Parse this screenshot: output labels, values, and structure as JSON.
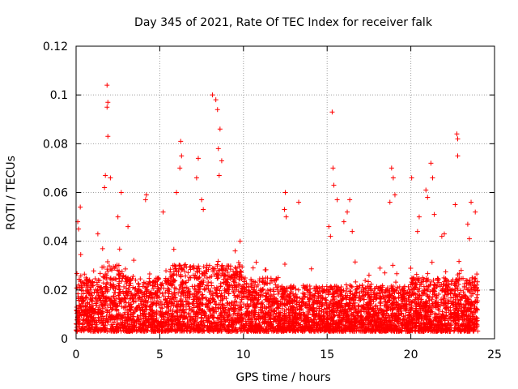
{
  "chart_data": {
    "type": "scatter",
    "title": "Day 345 of 2021, Rate Of TEC Index for receiver falk",
    "xlabel": "GPS time / hours",
    "ylabel": "ROTI / TECUs",
    "xlim": [
      0,
      25
    ],
    "ylim": [
      0,
      0.12
    ],
    "x_ticks": [
      "0",
      "5",
      "10",
      "15",
      "20",
      "25"
    ],
    "y_ticks": [
      "0",
      "0.02",
      "0.04",
      "0.06",
      "0.08",
      "0.1",
      "0.12"
    ],
    "grid": true,
    "marker": "plus",
    "series_color": "#ff0000",
    "x_range_data": [
      0,
      24
    ],
    "features": [
      {
        "x": 1.85,
        "y": 0.104
      },
      {
        "x": 1.9,
        "y": 0.097
      },
      {
        "x": 1.85,
        "y": 0.095
      },
      {
        "x": 1.9,
        "y": 0.083
      },
      {
        "x": 8.15,
        "y": 0.1
      },
      {
        "x": 8.35,
        "y": 0.098
      },
      {
        "x": 8.45,
        "y": 0.094
      },
      {
        "x": 15.3,
        "y": 0.093
      },
      {
        "x": 22.75,
        "y": 0.084
      },
      {
        "x": 22.8,
        "y": 0.082
      },
      {
        "x": 22.8,
        "y": 0.075
      },
      {
        "x": 6.25,
        "y": 0.081
      },
      {
        "x": 6.3,
        "y": 0.075
      },
      {
        "x": 6.2,
        "y": 0.07
      },
      {
        "x": 7.3,
        "y": 0.074
      },
      {
        "x": 7.2,
        "y": 0.066
      },
      {
        "x": 8.6,
        "y": 0.086
      },
      {
        "x": 8.5,
        "y": 0.078
      },
      {
        "x": 8.7,
        "y": 0.073
      },
      {
        "x": 8.55,
        "y": 0.067
      },
      {
        "x": 21.2,
        "y": 0.072
      },
      {
        "x": 21.3,
        "y": 0.066
      },
      {
        "x": 20.05,
        "y": 0.066
      },
      {
        "x": 18.85,
        "y": 0.07
      },
      {
        "x": 18.95,
        "y": 0.066
      },
      {
        "x": 15.35,
        "y": 0.07
      },
      {
        "x": 15.4,
        "y": 0.063
      },
      {
        "x": 1.75,
        "y": 0.067
      },
      {
        "x": 1.7,
        "y": 0.062
      },
      {
        "x": 2.05,
        "y": 0.066
      },
      {
        "x": 2.7,
        "y": 0.06
      },
      {
        "x": 4.2,
        "y": 0.059
      },
      {
        "x": 4.15,
        "y": 0.057
      },
      {
        "x": 6.0,
        "y": 0.06
      },
      {
        "x": 7.5,
        "y": 0.057
      },
      {
        "x": 12.5,
        "y": 0.06
      },
      {
        "x": 12.45,
        "y": 0.053
      },
      {
        "x": 13.3,
        "y": 0.056
      },
      {
        "x": 15.6,
        "y": 0.057
      },
      {
        "x": 16.35,
        "y": 0.057
      },
      {
        "x": 18.75,
        "y": 0.056
      },
      {
        "x": 19.05,
        "y": 0.059
      },
      {
        "x": 20.9,
        "y": 0.061
      },
      {
        "x": 21.0,
        "y": 0.058
      },
      {
        "x": 22.65,
        "y": 0.055
      },
      {
        "x": 23.6,
        "y": 0.056
      },
      {
        "x": 23.85,
        "y": 0.052
      },
      {
        "x": 0.1,
        "y": 0.048
      },
      {
        "x": 0.25,
        "y": 0.054
      },
      {
        "x": 0.15,
        "y": 0.045
      },
      {
        "x": 5.2,
        "y": 0.052
      },
      {
        "x": 7.6,
        "y": 0.053
      },
      {
        "x": 9.8,
        "y": 0.04
      },
      {
        "x": 12.55,
        "y": 0.05
      },
      {
        "x": 15.1,
        "y": 0.046
      },
      {
        "x": 15.2,
        "y": 0.042
      },
      {
        "x": 16.0,
        "y": 0.048
      },
      {
        "x": 16.2,
        "y": 0.052
      },
      {
        "x": 16.5,
        "y": 0.044
      },
      {
        "x": 20.4,
        "y": 0.044
      },
      {
        "x": 20.5,
        "y": 0.05
      },
      {
        "x": 21.4,
        "y": 0.051
      },
      {
        "x": 21.85,
        "y": 0.042
      },
      {
        "x": 22.0,
        "y": 0.043
      },
      {
        "x": 23.4,
        "y": 0.047
      },
      {
        "x": 23.5,
        "y": 0.041
      },
      {
        "x": 3.1,
        "y": 0.046
      },
      {
        "x": 2.5,
        "y": 0.05
      },
      {
        "x": 1.3,
        "y": 0.043
      }
    ]
  }
}
